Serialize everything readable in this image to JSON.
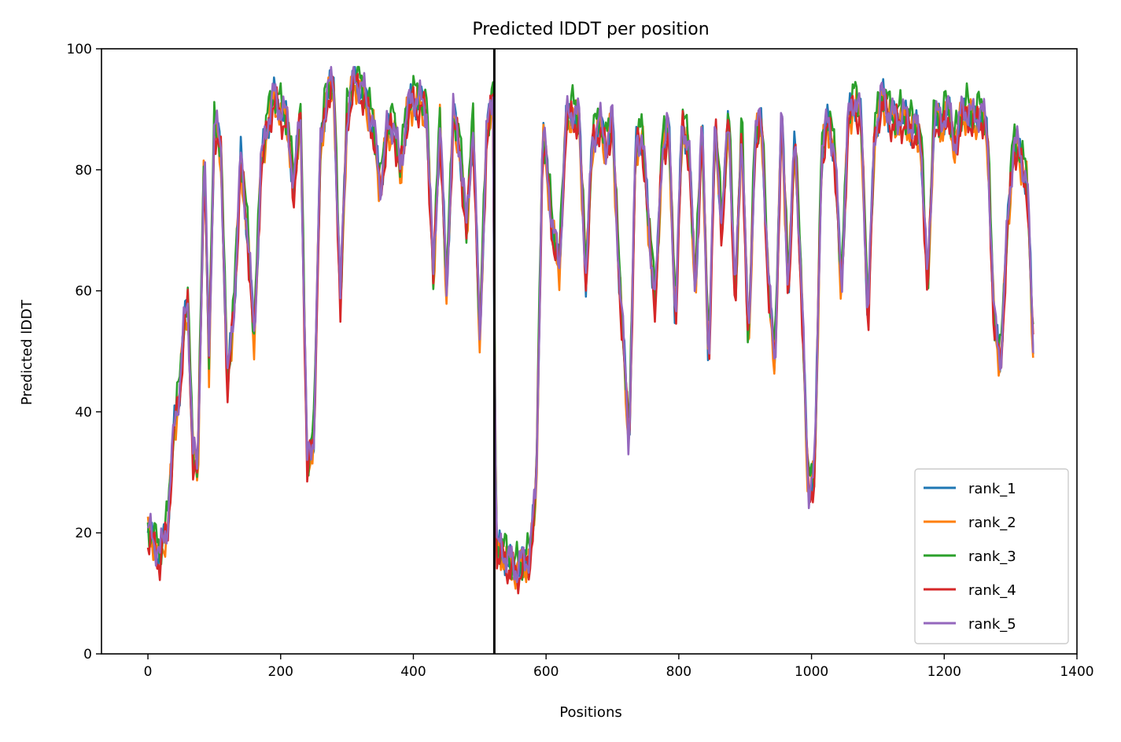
{
  "chart_data": {
    "type": "line",
    "title": "Predicted lDDT per position",
    "xlabel": "Positions",
    "ylabel": "Predicted lDDT",
    "xlim": [
      -70,
      1400
    ],
    "ylim": [
      0,
      100
    ],
    "xticks": [
      0,
      200,
      400,
      600,
      800,
      1000,
      1200,
      1400
    ],
    "yticks": [
      0,
      20,
      40,
      60,
      80,
      100
    ],
    "grid": false,
    "legend_position": "lower right",
    "chain_break": 522,
    "series": [
      {
        "name": "rank_1",
        "color": "#1f77b4",
        "offset": 0.0
      },
      {
        "name": "rank_2",
        "color": "#ff7f0e",
        "offset": -0.6
      },
      {
        "name": "rank_3",
        "color": "#2ca02c",
        "offset": 0.9
      },
      {
        "name": "rank_4",
        "color": "#d62728",
        "offset": -1.0
      },
      {
        "name": "rank_5",
        "color": "#9467bd",
        "offset": 0.3
      }
    ],
    "base_profile": {
      "x": [
        0,
        8,
        18,
        30,
        40,
        48,
        55,
        60,
        68,
        75,
        85,
        92,
        100,
        110,
        120,
        130,
        140,
        150,
        160,
        170,
        180,
        190,
        200,
        210,
        220,
        230,
        240,
        250,
        260,
        270,
        280,
        290,
        300,
        310,
        320,
        330,
        340,
        350,
        360,
        370,
        380,
        390,
        400,
        410,
        420,
        430,
        440,
        450,
        460,
        470,
        480,
        490,
        500,
        510,
        520,
        522,
        525,
        535,
        545,
        555,
        565,
        575,
        585,
        595,
        600,
        610,
        620,
        630,
        640,
        650,
        660,
        670,
        680,
        690,
        700,
        710,
        720,
        725,
        735,
        745,
        755,
        765,
        775,
        785,
        795,
        805,
        815,
        825,
        835,
        845,
        855,
        865,
        875,
        885,
        895,
        905,
        915,
        925,
        935,
        945,
        955,
        965,
        975,
        985,
        995,
        1005,
        1015,
        1025,
        1035,
        1045,
        1055,
        1065,
        1075,
        1085,
        1095,
        1105,
        1115,
        1125,
        1135,
        1145,
        1155,
        1165,
        1175,
        1185,
        1195,
        1205,
        1215,
        1225,
        1235,
        1245,
        1255,
        1265,
        1275,
        1285,
        1295,
        1305,
        1315,
        1325,
        1335
      ],
      "y": [
        20,
        19,
        16,
        22,
        38,
        44,
        55,
        58,
        33,
        30,
        84,
        48,
        88,
        83,
        44,
        58,
        82,
        70,
        52,
        80,
        88,
        92,
        90,
        88,
        77,
        90,
        31,
        36,
        84,
        93,
        94,
        58,
        89,
        95,
        94,
        91,
        87,
        77,
        86,
        88,
        80,
        89,
        92,
        91,
        90,
        62,
        88,
        60,
        89,
        84,
        70,
        88,
        52,
        85,
        93,
        57,
        17,
        17,
        15,
        14,
        15,
        16,
        27,
        86,
        82,
        70,
        64,
        88,
        90,
        88,
        62,
        85,
        88,
        84,
        88,
        63,
        45,
        34,
        84,
        86,
        70,
        58,
        84,
        87,
        55,
        88,
        84,
        60,
        88,
        48,
        88,
        70,
        90,
        58,
        88,
        50,
        86,
        88,
        61,
        48,
        90,
        60,
        86,
        60,
        27,
        30,
        83,
        88,
        83,
        60,
        88,
        92,
        88,
        55,
        86,
        92,
        90,
        88,
        89,
        88,
        87,
        85,
        60,
        90,
        87,
        91,
        84,
        89,
        90,
        88,
        90,
        86,
        55,
        48,
        70,
        85,
        82,
        78,
        48
      ]
    }
  }
}
